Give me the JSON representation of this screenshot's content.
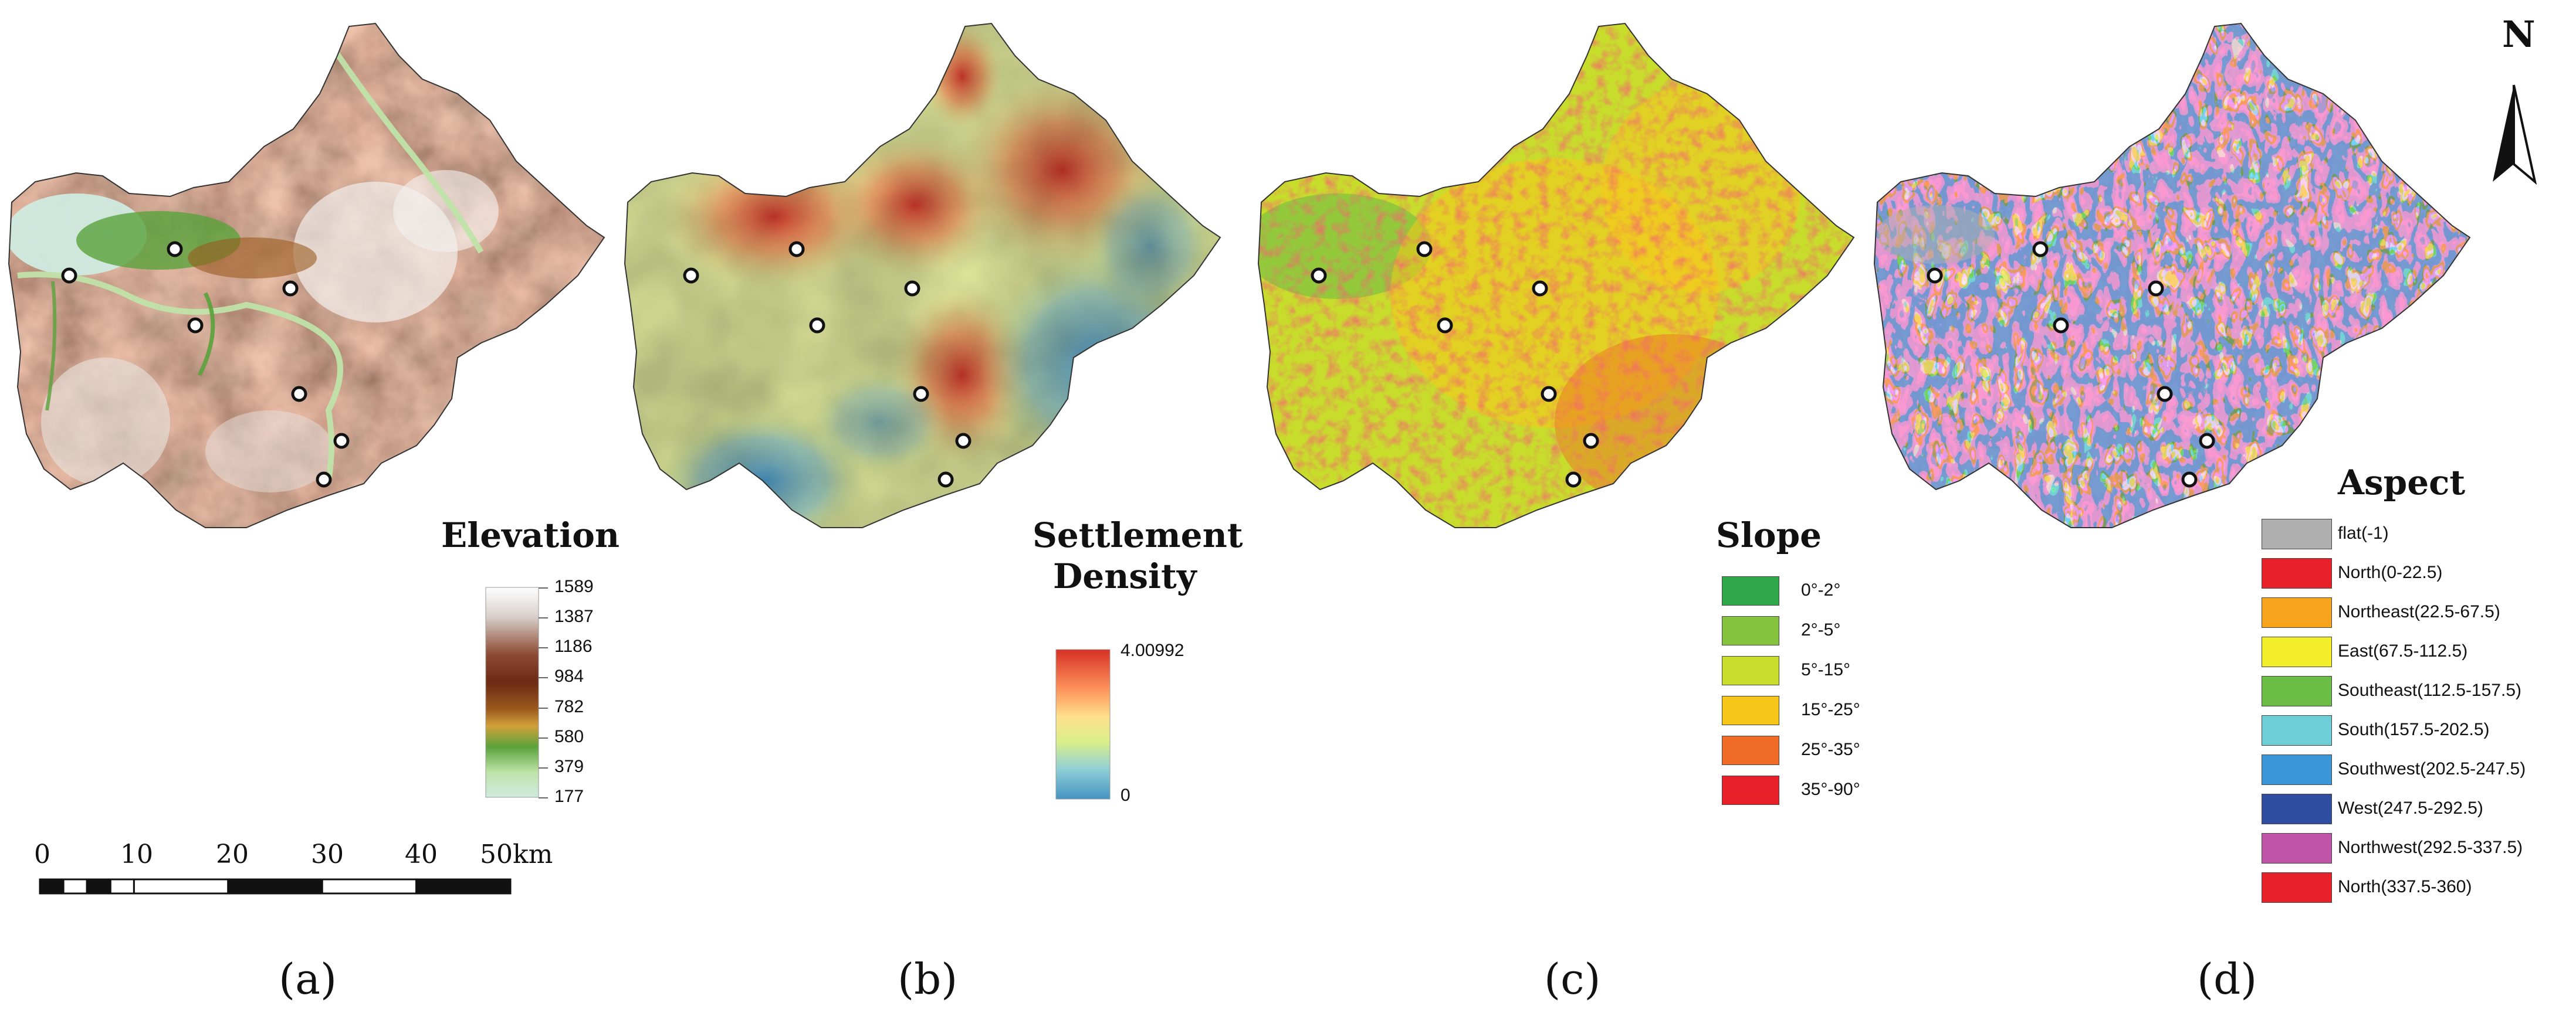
{
  "panels": [
    {
      "id": "a",
      "label": "(a)",
      "legend_title": "Elevation",
      "legend_ticks": [
        "1589",
        "1387",
        "1186",
        "984",
        "782",
        "580",
        "379",
        "177"
      ],
      "ramp_colors": [
        "#ffffff",
        "#d8d0ca",
        "#8c4a32",
        "#6b2a14",
        "#9a5a1e",
        "#d2a03a",
        "#5aa23c",
        "#bfe3a8",
        "#cfeadf"
      ],
      "map_style": "elevation"
    },
    {
      "id": "b",
      "label": "(b)",
      "legend_title_lines": [
        "Settlement",
        "Density"
      ],
      "legend_max": "4.00992",
      "legend_min": "0",
      "ramp_colors": [
        "#d73027",
        "#fc8d59",
        "#fee08b",
        "#d9ef8b",
        "#91cfd6",
        "#4393c3"
      ],
      "map_style": "density"
    },
    {
      "id": "c",
      "label": "(c)",
      "legend_title": "Slope",
      "classes": [
        {
          "label": "0°-2°",
          "color": "#2ea84a"
        },
        {
          "label": "2°-5°",
          "color": "#86c440"
        },
        {
          "label": "5°-15°",
          "color": "#c8dc2c"
        },
        {
          "label": "15°-25°",
          "color": "#f7c61b"
        },
        {
          "label": "25°-35°",
          "color": "#ef6a24"
        },
        {
          "label": "35°-90°",
          "color": "#e8202a"
        }
      ],
      "map_style": "slope"
    },
    {
      "id": "d",
      "label": "(d)",
      "legend_title": "Aspect",
      "classes": [
        {
          "label": "flat(-1)",
          "color": "#b0b0b0"
        },
        {
          "label": "North(0-22.5)",
          "color": "#e8202a"
        },
        {
          "label": "Northeast(22.5-67.5)",
          "color": "#f7a41e"
        },
        {
          "label": "East(67.5-112.5)",
          "color": "#f3ee2a"
        },
        {
          "label": "Southeast(112.5-157.5)",
          "color": "#6cbd45"
        },
        {
          "label": "South(157.5-202.5)",
          "color": "#6ecfd8"
        },
        {
          "label": "Southwest(202.5-247.5)",
          "color": "#3a96d6"
        },
        {
          "label": "West(247.5-292.5)",
          "color": "#2f4ea1"
        },
        {
          "label": "Northwest(292.5-337.5)",
          "color": "#c054a8"
        },
        {
          "label": "North(337.5-360)",
          "color": "#e8202a"
        }
      ],
      "map_style": "aspect"
    }
  ],
  "scale_bar": {
    "labels": [
      "0",
      "10",
      "20",
      "30",
      "40",
      "50km"
    ]
  },
  "north_arrow": {
    "label": "N"
  }
}
